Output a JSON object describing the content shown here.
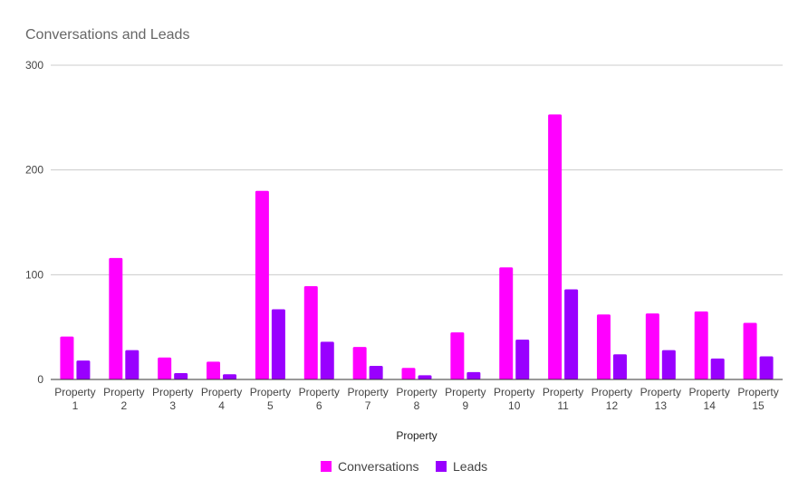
{
  "chart_data": {
    "type": "bar",
    "title": "Conversations and Leads",
    "xlabel": "Property",
    "ylabel": "",
    "ylim": [
      0,
      300
    ],
    "yticks": [
      0,
      100,
      200,
      300
    ],
    "grid": true,
    "legend_position": "bottom",
    "categories": [
      [
        "Property",
        "1"
      ],
      [
        "Property",
        "2"
      ],
      [
        "Property",
        "3"
      ],
      [
        "Property",
        "4"
      ],
      [
        "Property",
        "5"
      ],
      [
        "Property",
        "6"
      ],
      [
        "Property",
        "7"
      ],
      [
        "Property",
        "8"
      ],
      [
        "Property",
        "9"
      ],
      [
        "Property",
        "10"
      ],
      [
        "Property",
        "11"
      ],
      [
        "Property",
        "12"
      ],
      [
        "Property",
        "13"
      ],
      [
        "Property",
        "14"
      ],
      [
        "Property",
        "15"
      ]
    ],
    "series": [
      {
        "name": "Conversations",
        "color": "#ff00ff",
        "values": [
          41,
          116,
          21,
          17,
          180,
          89,
          31,
          11,
          45,
          107,
          253,
          62,
          63,
          65,
          54
        ]
      },
      {
        "name": "Leads",
        "color": "#9900ff",
        "values": [
          18,
          28,
          6,
          5,
          67,
          36,
          13,
          4,
          7,
          38,
          86,
          24,
          28,
          20,
          22
        ]
      }
    ]
  }
}
